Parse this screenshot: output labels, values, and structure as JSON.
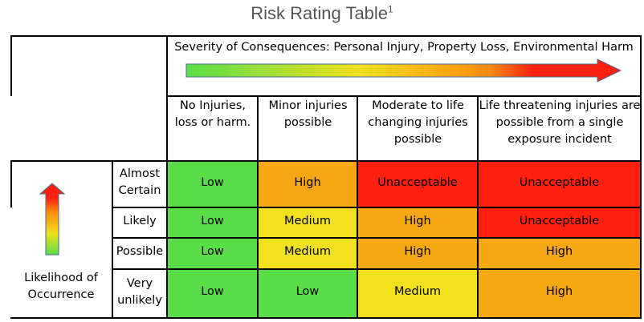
{
  "title": "Risk Rating Table",
  "title_sup": "1",
  "severity_label": "Severity of Consequences: Personal Injury, Property Loss, Environmental Harm",
  "likelihood_label": "Likelihood of Occurrence",
  "columns": [
    "No Injuries, loss or harm.",
    "Minor injuries possible",
    "Moderate to life changing injuries possible",
    "Life threatening injuries are possible from a single exposure incident"
  ],
  "rows": [
    {
      "label": "Almost Certain",
      "cells": [
        "Low",
        "High",
        "Unacceptable",
        "Unacceptable"
      ]
    },
    {
      "label": "Likely",
      "cells": [
        "Low",
        "Medium",
        "High",
        "Unacceptable"
      ]
    },
    {
      "label": "Possible",
      "cells": [
        "Low",
        "Medium",
        "High",
        "High"
      ]
    },
    {
      "label": "Very unlikely",
      "cells": [
        "Low",
        "Low",
        "Medium",
        "High"
      ]
    }
  ],
  "colors": {
    "Low": "#5ade48",
    "Medium": "#f0e01e",
    "High": "#f5a814",
    "Unacceptable": "#fe1f0f"
  },
  "icons": {
    "severity_arrow": "gradient-arrow-right",
    "likelihood_arrow": "gradient-arrow-up"
  }
}
